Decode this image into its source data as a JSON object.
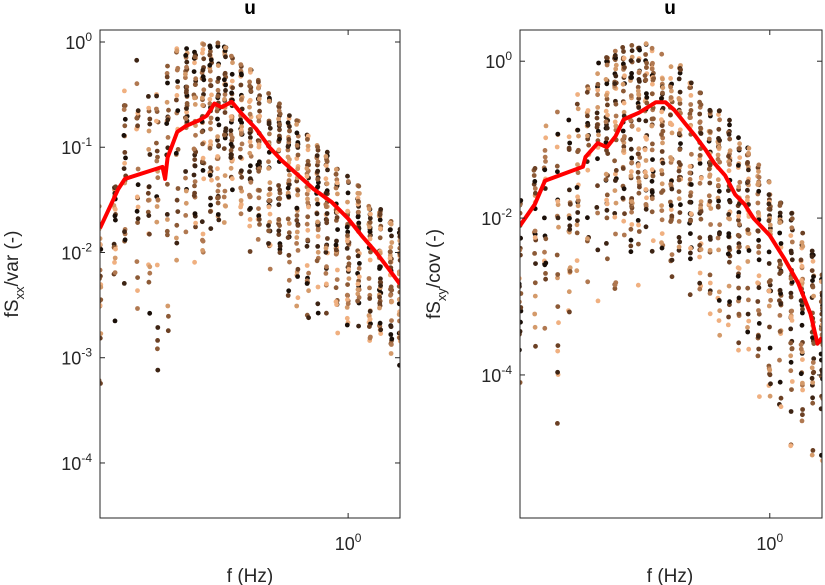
{
  "chart_data": [
    {
      "type": "scatter",
      "title": "u",
      "xlabel": "f (Hz)",
      "ylabel_main": "fS",
      "ylabel_sub": "xx",
      "ylabel_rest": "/var (-)",
      "xscale": "log",
      "yscale": "log",
      "xlim": [
        0.2,
        1.4
      ],
      "ylim": [
        3e-05,
        1.3
      ],
      "xticks": [
        {
          "value": 1,
          "base": "10",
          "exp": "0"
        }
      ],
      "yticks": [
        {
          "value": 0.0001,
          "base": "10",
          "exp": "-4"
        },
        {
          "value": 0.001,
          "base": "10",
          "exp": "-3"
        },
        {
          "value": 0.01,
          "base": "10",
          "exp": "-2"
        },
        {
          "value": 0.1,
          "base": "10",
          "exp": "-1"
        },
        {
          "value": 1,
          "base": "10",
          "exp": "0"
        }
      ],
      "grid": false,
      "scatter_colors": [
        "#1a0f08",
        "#3d2414",
        "#6b4024",
        "#8c5a36",
        "#b07850",
        "#d49a6a",
        "#f0b080"
      ],
      "scatter_columns": [
        {
          "f": 0.2,
          "lo": 0.0004,
          "hi": 0.03
        },
        {
          "f": 0.22,
          "lo": 0.002,
          "hi": 0.05
        },
        {
          "f": 0.235,
          "lo": 0.004,
          "hi": 0.5
        },
        {
          "f": 0.255,
          "lo": 0.0004,
          "hi": 0.7
        },
        {
          "f": 0.275,
          "lo": 0.0008,
          "hi": 0.4
        },
        {
          "f": 0.29,
          "lo": 0.0006,
          "hi": 0.35
        },
        {
          "f": 0.31,
          "lo": 0.001,
          "hi": 0.6
        },
        {
          "f": 0.33,
          "lo": 0.002,
          "hi": 0.9
        },
        {
          "f": 0.35,
          "lo": 0.003,
          "hi": 0.9
        },
        {
          "f": 0.37,
          "lo": 0.005,
          "hi": 1.0
        },
        {
          "f": 0.39,
          "lo": 0.008,
          "hi": 1.0
        },
        {
          "f": 0.41,
          "lo": 0.01,
          "hi": 1.1
        },
        {
          "f": 0.43,
          "lo": 0.015,
          "hi": 1.0
        },
        {
          "f": 0.45,
          "lo": 0.015,
          "hi": 0.9
        },
        {
          "f": 0.47,
          "lo": 0.015,
          "hi": 0.8
        },
        {
          "f": 0.5,
          "lo": 0.01,
          "hi": 0.65
        },
        {
          "f": 0.53,
          "lo": 0.008,
          "hi": 0.55
        },
        {
          "f": 0.56,
          "lo": 0.006,
          "hi": 0.45
        },
        {
          "f": 0.6,
          "lo": 0.005,
          "hi": 0.35
        },
        {
          "f": 0.64,
          "lo": 0.004,
          "hi": 0.28
        },
        {
          "f": 0.68,
          "lo": 0.003,
          "hi": 0.22
        },
        {
          "f": 0.72,
          "lo": 0.0025,
          "hi": 0.18
        },
        {
          "f": 0.77,
          "lo": 0.002,
          "hi": 0.14
        },
        {
          "f": 0.82,
          "lo": 0.0018,
          "hi": 0.11
        },
        {
          "f": 0.87,
          "lo": 0.0016,
          "hi": 0.09
        },
        {
          "f": 0.93,
          "lo": 0.0014,
          "hi": 0.07
        },
        {
          "f": 1.0,
          "lo": 0.0012,
          "hi": 0.055
        },
        {
          "f": 1.07,
          "lo": 0.0011,
          "hi": 0.045
        },
        {
          "f": 1.15,
          "lo": 0.001,
          "hi": 0.035
        },
        {
          "f": 1.23,
          "lo": 0.0009,
          "hi": 0.028
        },
        {
          "f": 1.32,
          "lo": 0.0008,
          "hi": 0.022
        },
        {
          "f": 1.4,
          "lo": 0.0008,
          "hi": 0.018
        }
      ],
      "series": [
        {
          "color": "#ff0000",
          "line": [
            {
              "x": 0.2,
              "y": 0.017
            },
            {
              "x": 0.225,
              "y": 0.04
            },
            {
              "x": 0.235,
              "y": 0.05
            },
            {
              "x": 0.3,
              "y": 0.065
            },
            {
              "x": 0.305,
              "y": 0.05
            },
            {
              "x": 0.31,
              "y": 0.08
            },
            {
              "x": 0.33,
              "y": 0.14
            },
            {
              "x": 0.35,
              "y": 0.16
            },
            {
              "x": 0.38,
              "y": 0.18
            },
            {
              "x": 0.4,
              "y": 0.2
            },
            {
              "x": 0.42,
              "y": 0.26
            },
            {
              "x": 0.44,
              "y": 0.24
            },
            {
              "x": 0.47,
              "y": 0.27
            },
            {
              "x": 0.5,
              "y": 0.21
            },
            {
              "x": 0.55,
              "y": 0.15
            },
            {
              "x": 0.6,
              "y": 0.1
            },
            {
              "x": 0.65,
              "y": 0.075
            },
            {
              "x": 0.7,
              "y": 0.06
            },
            {
              "x": 0.8,
              "y": 0.04
            },
            {
              "x": 0.9,
              "y": 0.03
            },
            {
              "x": 1.0,
              "y": 0.021
            },
            {
              "x": 1.1,
              "y": 0.014
            },
            {
              "x": 1.2,
              "y": 0.01
            },
            {
              "x": 1.3,
              "y": 0.007
            },
            {
              "x": 1.4,
              "y": 0.005
            }
          ]
        }
      ]
    },
    {
      "type": "scatter",
      "title": "u",
      "xlabel": "f (Hz)",
      "ylabel_main": "fS",
      "ylabel_sub": "xy",
      "ylabel_rest": "/cov (-)",
      "xscale": "log",
      "yscale": "log",
      "xlim": [
        0.2,
        1.4
      ],
      "ylim": [
        1.5e-06,
        2.5
      ],
      "xticks": [
        {
          "value": 1,
          "base": "10",
          "exp": "0"
        }
      ],
      "yticks": [
        {
          "value": 0.0001,
          "base": "10",
          "exp": "-4"
        },
        {
          "value": 0.01,
          "base": "10",
          "exp": "-2"
        },
        {
          "value": 1,
          "base": "10",
          "exp": "0"
        }
      ],
      "grid": false,
      "scatter_colors": [
        "#1a0f08",
        "#3d2414",
        "#6b4024",
        "#8c5a36",
        "#b07850",
        "#d49a6a",
        "#f0b080"
      ],
      "scatter_columns": [
        {
          "f": 0.2,
          "lo": 5e-05,
          "hi": 0.02
        },
        {
          "f": 0.22,
          "lo": 0.0001,
          "hi": 0.05
        },
        {
          "f": 0.235,
          "lo": 0.0003,
          "hi": 0.2
        },
        {
          "f": 0.255,
          "lo": 1e-05,
          "hi": 0.4
        },
        {
          "f": 0.275,
          "lo": 0.0002,
          "hi": 0.3
        },
        {
          "f": 0.29,
          "lo": 0.0002,
          "hi": 0.45
        },
        {
          "f": 0.31,
          "lo": 0.0003,
          "hi": 0.6
        },
        {
          "f": 0.33,
          "lo": 0.0005,
          "hi": 1.0
        },
        {
          "f": 0.35,
          "lo": 0.001,
          "hi": 1.2
        },
        {
          "f": 0.37,
          "lo": 0.0005,
          "hi": 1.4
        },
        {
          "f": 0.39,
          "lo": 0.002,
          "hi": 1.5
        },
        {
          "f": 0.41,
          "lo": 0.002,
          "hi": 1.6
        },
        {
          "f": 0.43,
          "lo": 0.001,
          "hi": 1.6
        },
        {
          "f": 0.45,
          "lo": 0.002,
          "hi": 1.8
        },
        {
          "f": 0.47,
          "lo": 0.002,
          "hi": 1.5
        },
        {
          "f": 0.5,
          "lo": 0.0015,
          "hi": 1.3
        },
        {
          "f": 0.53,
          "lo": 0.001,
          "hi": 1.1
        },
        {
          "f": 0.56,
          "lo": 0.0008,
          "hi": 0.9
        },
        {
          "f": 0.6,
          "lo": 0.0006,
          "hi": 0.7
        },
        {
          "f": 0.64,
          "lo": 0.0005,
          "hi": 0.5
        },
        {
          "f": 0.68,
          "lo": 0.0004,
          "hi": 0.35
        },
        {
          "f": 0.72,
          "lo": 0.0003,
          "hi": 0.25
        },
        {
          "f": 0.77,
          "lo": 0.0002,
          "hi": 0.18
        },
        {
          "f": 0.82,
          "lo": 0.00015,
          "hi": 0.12
        },
        {
          "f": 0.87,
          "lo": 0.0001,
          "hi": 0.08
        },
        {
          "f": 0.93,
          "lo": 5e-05,
          "hi": 0.05
        },
        {
          "f": 1.0,
          "lo": 3e-05,
          "hi": 0.03
        },
        {
          "f": 1.07,
          "lo": 2e-05,
          "hi": 0.02
        },
        {
          "f": 1.15,
          "lo": 1e-05,
          "hi": 0.012
        },
        {
          "f": 1.23,
          "lo": 1e-05,
          "hi": 0.007
        },
        {
          "f": 1.32,
          "lo": 5e-06,
          "hi": 0.004
        },
        {
          "f": 1.4,
          "lo": 5e-06,
          "hi": 0.002
        }
      ],
      "series": [
        {
          "color": "#ff0000",
          "line": [
            {
              "x": 0.2,
              "y": 0.008
            },
            {
              "x": 0.22,
              "y": 0.015
            },
            {
              "x": 0.235,
              "y": 0.03
            },
            {
              "x": 0.3,
              "y": 0.045
            },
            {
              "x": 0.305,
              "y": 0.06
            },
            {
              "x": 0.33,
              "y": 0.09
            },
            {
              "x": 0.35,
              "y": 0.08
            },
            {
              "x": 0.37,
              "y": 0.11
            },
            {
              "x": 0.39,
              "y": 0.18
            },
            {
              "x": 0.41,
              "y": 0.2
            },
            {
              "x": 0.43,
              "y": 0.22
            },
            {
              "x": 0.45,
              "y": 0.25
            },
            {
              "x": 0.48,
              "y": 0.3
            },
            {
              "x": 0.51,
              "y": 0.3
            },
            {
              "x": 0.54,
              "y": 0.24
            },
            {
              "x": 0.58,
              "y": 0.16
            },
            {
              "x": 0.62,
              "y": 0.11
            },
            {
              "x": 0.66,
              "y": 0.075
            },
            {
              "x": 0.7,
              "y": 0.05
            },
            {
              "x": 0.75,
              "y": 0.035
            },
            {
              "x": 0.8,
              "y": 0.02
            },
            {
              "x": 0.85,
              "y": 0.015
            },
            {
              "x": 0.9,
              "y": 0.01
            },
            {
              "x": 1.0,
              "y": 0.006
            },
            {
              "x": 1.1,
              "y": 0.003
            },
            {
              "x": 1.2,
              "y": 0.0015
            },
            {
              "x": 1.3,
              "y": 0.0006
            },
            {
              "x": 1.36,
              "y": 0.00025
            },
            {
              "x": 1.4,
              "y": 0.0003
            }
          ]
        }
      ]
    }
  ]
}
